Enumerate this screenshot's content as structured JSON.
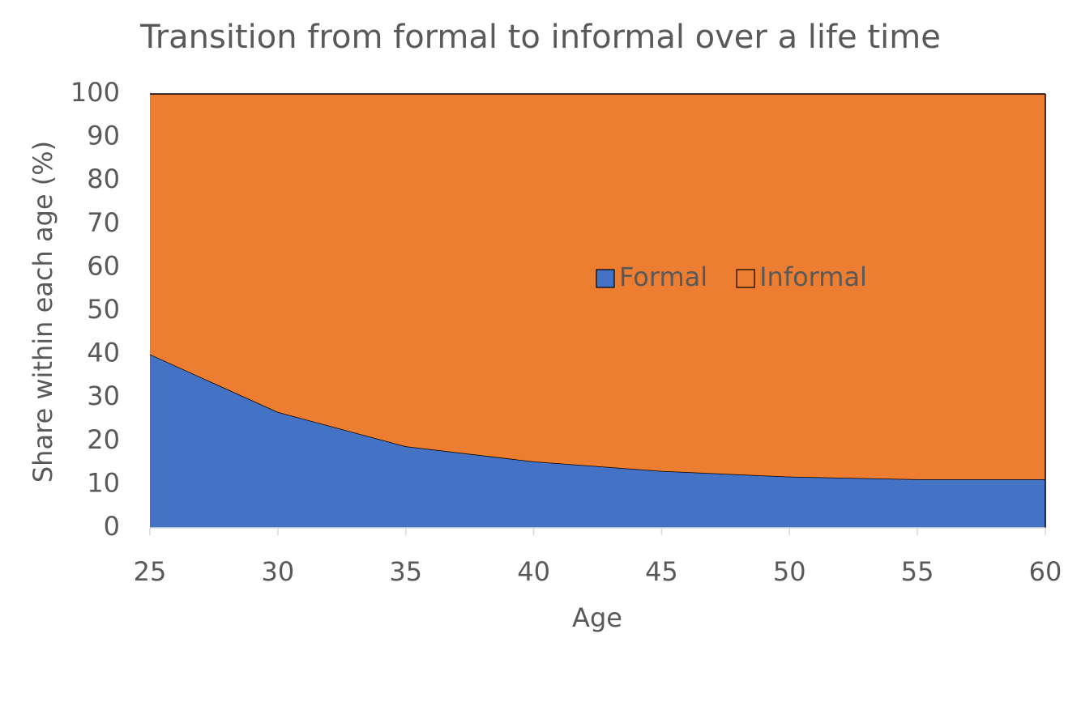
{
  "chart_data": {
    "type": "stacked_area",
    "title": "Transition from formal to informal over a life time",
    "x_label": "Age",
    "y_label": "Share within each age (%)",
    "x": [
      25,
      30,
      35,
      40,
      45,
      50,
      55,
      60
    ],
    "series": [
      {
        "name": "Formal",
        "color": "#4472c4",
        "values": [
          40,
          26.7,
          18.8,
          15.3,
          13.1,
          11.8,
          11.2,
          11.2
        ]
      },
      {
        "name": "Informal",
        "color": "#ed7d31",
        "values": [
          60,
          73.3,
          81.2,
          84.7,
          86.9,
          88.2,
          88.8,
          88.8
        ]
      }
    ],
    "xlim": [
      25,
      60
    ],
    "xticks": [
      25,
      30,
      35,
      40,
      45,
      50,
      55,
      60
    ],
    "ylim": [
      0,
      100
    ],
    "yticks": [
      0,
      10,
      20,
      30,
      40,
      50,
      60,
      70,
      80,
      90,
      100
    ],
    "grid": false,
    "legend": "center"
  }
}
